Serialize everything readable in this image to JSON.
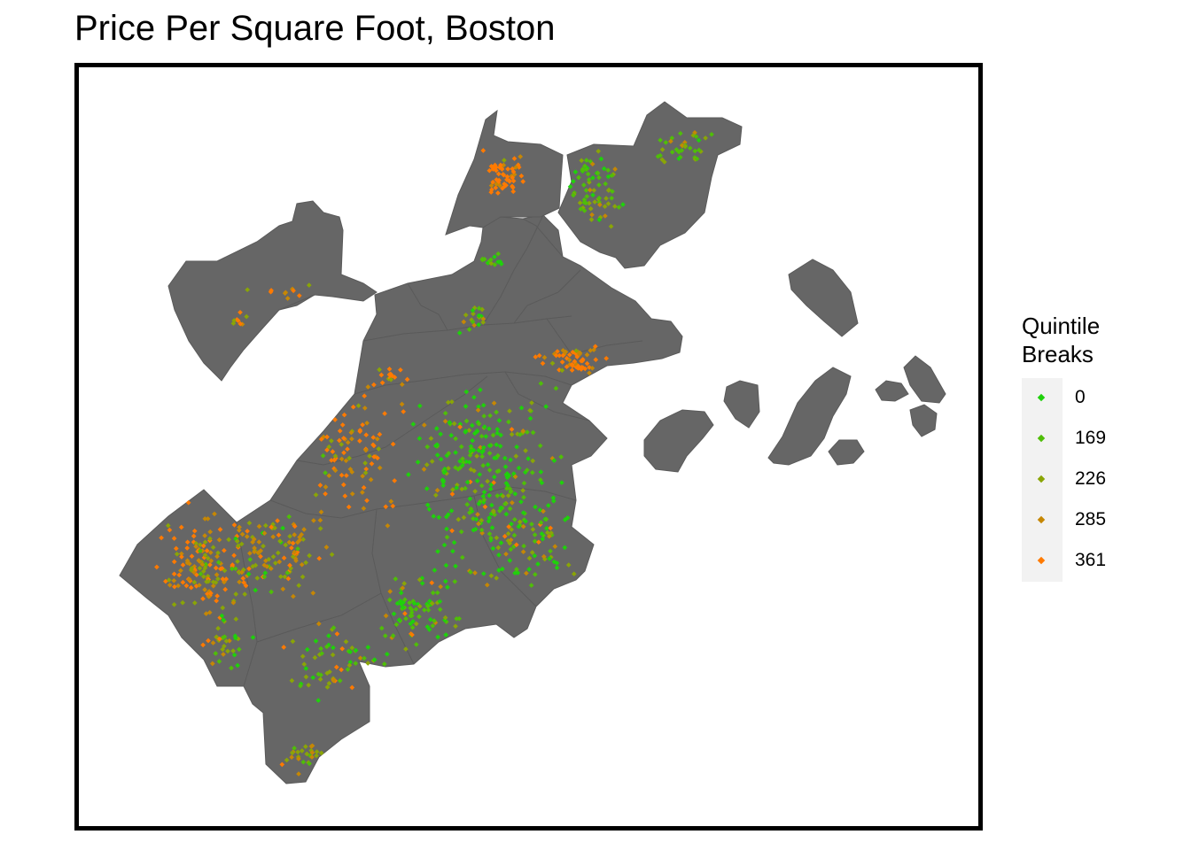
{
  "title": "Price Per Square Foot, Boston",
  "colors": {
    "land": "#666666",
    "borders": "#5a5a5a",
    "frame": "#000000",
    "legend_bg": "#f2f2f2"
  },
  "legend": {
    "title_lines": [
      "Quintile",
      "Breaks"
    ],
    "items": [
      {
        "label": "0",
        "color": "#1fd10b"
      },
      {
        "label": "169",
        "color": "#4fbe08"
      },
      {
        "label": "226",
        "color": "#8aa506"
      },
      {
        "label": "285",
        "color": "#c68704"
      },
      {
        "label": "361",
        "color": "#ff7a00"
      }
    ]
  }
}
